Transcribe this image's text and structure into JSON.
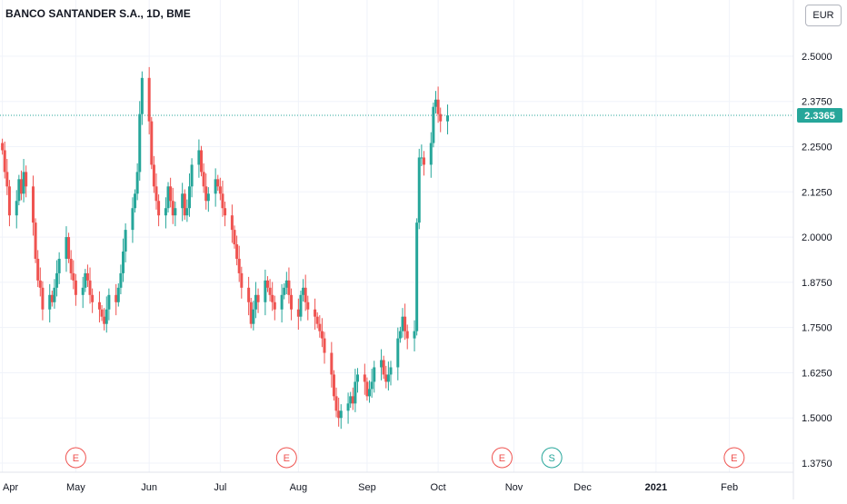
{
  "chart_data": {
    "type": "candlestick",
    "title": "BANCO SANTANDER S.A., 1D, BME",
    "currency_label": "EUR",
    "current_price": "2.3365",
    "colors": {
      "up": "#26a69a",
      "down": "#ef5350",
      "price_line": "#26a69a",
      "events": "#ef5350",
      "split": "#26a69a"
    },
    "y_ticks": [
      "2.5000",
      "2.3750",
      "2.2500",
      "2.1250",
      "2.0000",
      "1.8750",
      "1.7500",
      "1.6250",
      "1.5000",
      "1.3750"
    ],
    "y_tick_values": [
      2.5,
      2.375,
      2.25,
      2.125,
      2.0,
      1.875,
      1.75,
      1.625,
      1.5,
      1.375
    ],
    "ylim": [
      1.35,
      2.555
    ],
    "x_ticks": [
      "Apr",
      "May",
      "Jun",
      "Jul",
      "Aug",
      "Sep",
      "Oct",
      "Nov",
      "Dec",
      "2021",
      "Feb"
    ],
    "x_tick_bold": [
      false,
      false,
      false,
      false,
      false,
      false,
      false,
      false,
      false,
      true,
      false
    ],
    "events": [
      {
        "label": "E",
        "date": "2020-05-01"
      },
      {
        "label": "E",
        "date": "2020-07-29"
      },
      {
        "label": "E",
        "date": "2020-10-28"
      },
      {
        "label": "S",
        "date": "2020-11-18"
      },
      {
        "label": "E",
        "date": "2021-02-03"
      }
    ],
    "series_start": "2020-03-31",
    "x_range": [
      "2020-03-30",
      "2021-02-28"
    ],
    "series_closes": [
      2.24,
      2.18,
      2.14,
      2.06,
      2.1,
      2.16,
      2.12,
      2.18,
      2.14,
      2.04,
      1.94,
      1.88,
      1.86,
      1.8,
      1.84,
      1.82,
      1.86,
      1.9,
      1.94,
      2.0,
      1.94,
      1.9,
      1.88,
      1.84,
      1.86,
      1.9,
      1.88,
      1.84,
      1.82,
      1.8,
      1.78,
      1.76,
      1.8,
      1.84,
      1.82,
      1.86,
      1.9,
      1.96,
      2.02,
      2.08,
      2.12,
      2.18,
      2.34,
      2.44,
      2.32,
      2.2,
      2.14,
      2.1,
      2.06,
      2.08,
      2.14,
      2.1,
      2.06,
      2.08,
      2.12,
      2.06,
      2.08,
      2.14,
      2.2,
      2.24,
      2.18,
      2.14,
      2.1,
      2.12,
      2.16,
      2.14,
      2.12,
      2.08,
      2.06,
      2.02,
      1.98,
      1.94,
      1.9,
      1.86,
      1.82,
      1.76,
      1.8,
      1.84,
      1.82,
      1.88,
      1.86,
      1.84,
      1.82,
      1.8,
      1.84,
      1.86,
      1.88,
      1.84,
      1.8,
      1.78,
      1.84,
      1.86,
      1.82,
      1.8,
      1.78,
      1.76,
      1.74,
      1.72,
      1.68,
      1.62,
      1.56,
      1.52,
      1.5,
      1.52,
      1.54,
      1.56,
      1.54,
      1.6,
      1.62,
      1.6,
      1.56,
      1.58,
      1.6,
      1.64,
      1.66,
      1.62,
      1.6,
      1.62,
      1.64,
      1.72,
      1.74,
      1.78,
      1.74,
      1.72,
      1.74,
      2.04,
      2.22,
      2.22,
      2.2,
      2.26,
      2.36,
      2.38,
      2.34,
      2.32,
      2.3365
    ]
  }
}
